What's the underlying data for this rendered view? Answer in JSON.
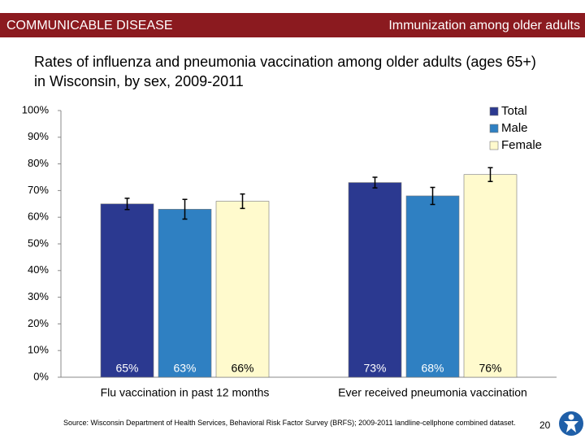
{
  "header": {
    "section": "COMMUNICABLE DISEASE",
    "topic": "Immunization among older adults"
  },
  "chart_data": {
    "type": "bar",
    "title": "Rates of influenza and pneumonia vaccination among older adults (ages 65+) in Wisconsin, by sex, 2009-2011",
    "categories": [
      "Flu vaccination in past 12 months",
      "Ever received pneumonia vaccination"
    ],
    "series": [
      {
        "name": "Total",
        "color": "#2b3990",
        "values": [
          65,
          73
        ],
        "value_labels": [
          "65%",
          "73%"
        ],
        "errors": [
          2.1,
          2.0
        ]
      },
      {
        "name": "Male",
        "color": "#2f80c2",
        "values": [
          63,
          68
        ],
        "value_labels": [
          "63%",
          "68%"
        ],
        "errors": [
          3.7,
          3.2
        ]
      },
      {
        "name": "Female",
        "color": "#fffacd",
        "values": [
          66,
          76
        ],
        "value_labels": [
          "66%",
          "76%"
        ],
        "errors": [
          2.7,
          2.6
        ]
      }
    ],
    "ylim": [
      0,
      100
    ],
    "yticks": [
      {
        "value": 0,
        "label": "0%"
      },
      {
        "value": 10,
        "label": "10%"
      },
      {
        "value": 20,
        "label": "20%"
      },
      {
        "value": 30,
        "label": "30%"
      },
      {
        "value": 40,
        "label": "40%"
      },
      {
        "value": 50,
        "label": "50%"
      },
      {
        "value": 60,
        "label": "60%"
      },
      {
        "value": 70,
        "label": "70%"
      },
      {
        "value": 80,
        "label": "80%"
      },
      {
        "value": 90,
        "label": "90%"
      },
      {
        "value": 100,
        "label": "100%"
      }
    ],
    "legend": "top-right"
  },
  "footer": {
    "source": "Source: Wisconsin Department of Health Services, Behavioral Risk Factor Survey (BRFS); 2009-2011 landline-cellphone combined dataset.",
    "page": "20"
  }
}
